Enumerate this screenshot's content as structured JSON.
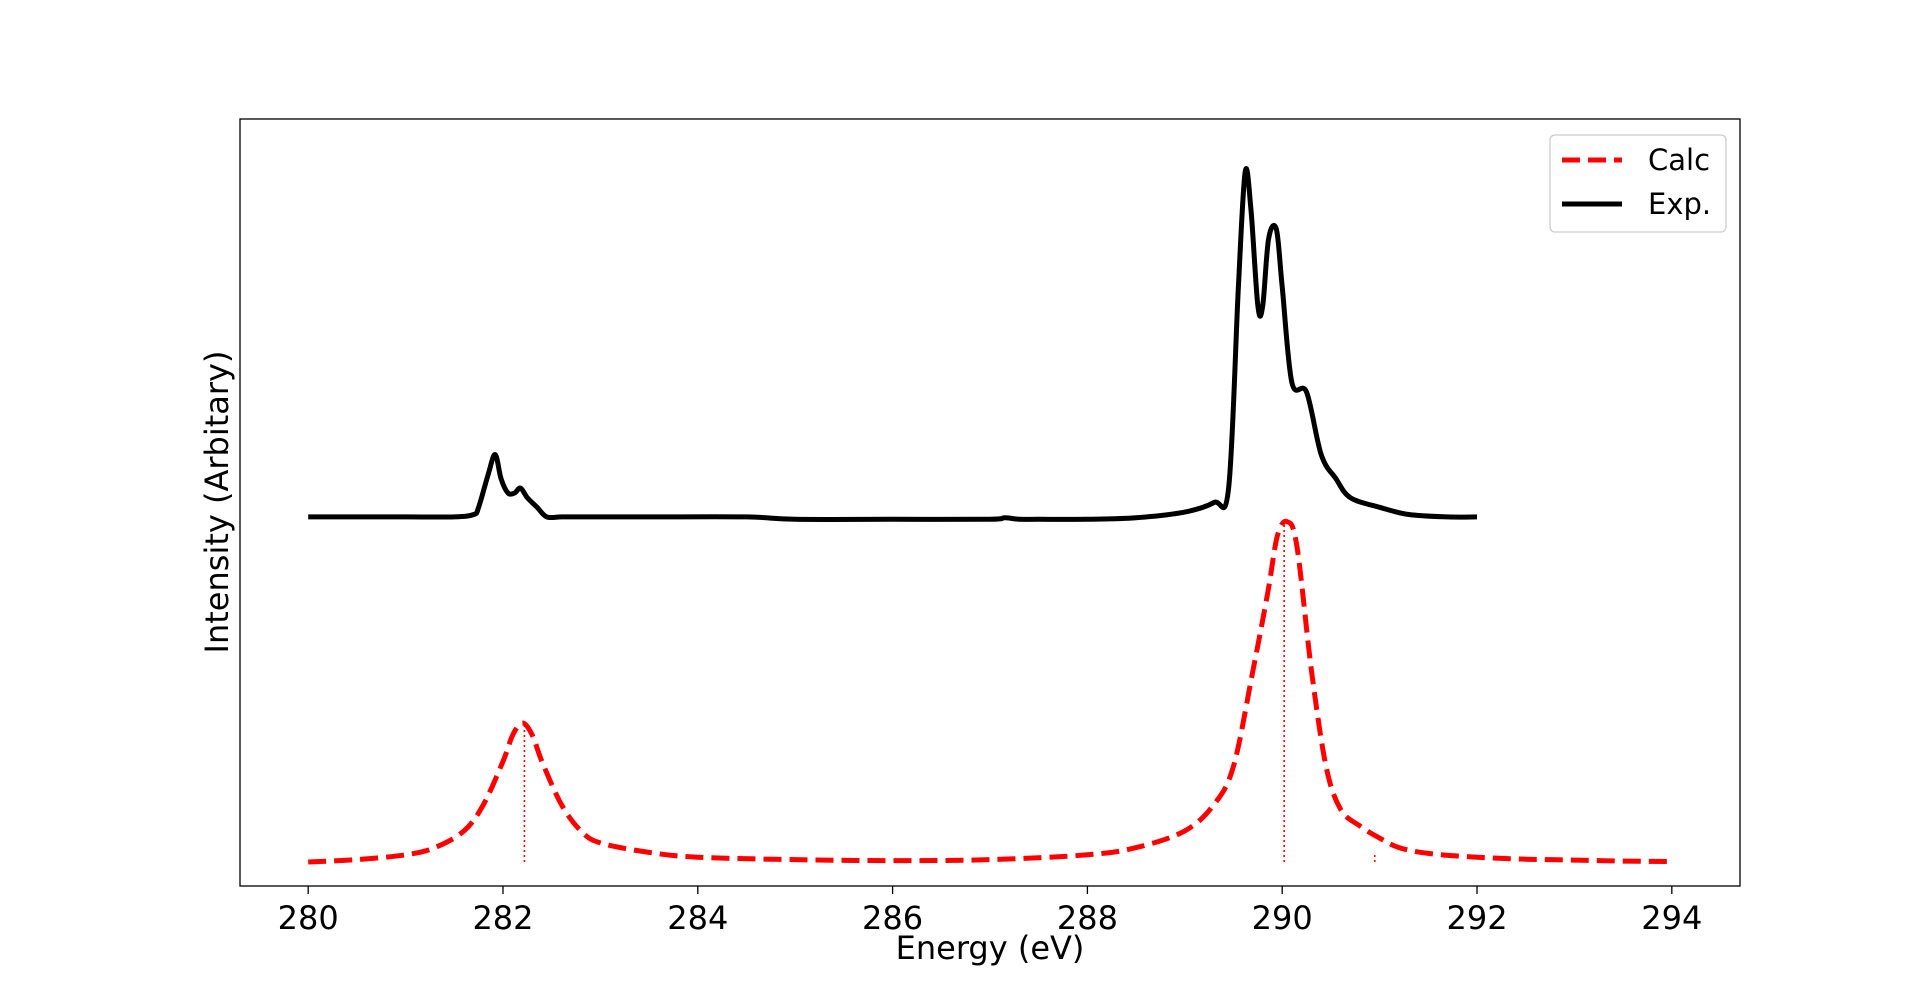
{
  "chart_data": {
    "type": "line",
    "title": "",
    "xlabel": "Energy (eV)",
    "ylabel": "Intensity (Arbitary)",
    "xlim": [
      279.3,
      294.7
    ],
    "ylim": [
      -0.05,
      1.55
    ],
    "x_ticks": [
      280,
      282,
      284,
      286,
      288,
      290,
      292,
      294
    ],
    "y_ticks_visible": false,
    "grid": false,
    "legend_position": "top-right",
    "series": [
      {
        "name": "Calc",
        "color": "#ff0000",
        "style": "dashed",
        "x": [
          280.0,
          280.5,
          281.0,
          281.3,
          281.6,
          281.8,
          282.0,
          282.1,
          282.2,
          282.3,
          282.4,
          282.6,
          282.8,
          283.0,
          283.5,
          284.0,
          285.0,
          286.0,
          287.0,
          288.0,
          288.5,
          289.0,
          289.3,
          289.5,
          289.7,
          289.85,
          289.95,
          290.05,
          290.15,
          290.3,
          290.45,
          290.6,
          290.8,
          291.0,
          291.2,
          291.5,
          292.0,
          292.5,
          293.0,
          293.5,
          294.0
        ],
        "y": [
          0.0,
          0.005,
          0.015,
          0.03,
          0.065,
          0.12,
          0.21,
          0.265,
          0.29,
          0.265,
          0.21,
          0.12,
          0.065,
          0.04,
          0.02,
          0.01,
          0.005,
          0.003,
          0.005,
          0.015,
          0.03,
          0.065,
          0.12,
          0.2,
          0.4,
          0.56,
          0.68,
          0.71,
          0.66,
          0.4,
          0.2,
          0.11,
          0.075,
          0.05,
          0.03,
          0.018,
          0.01,
          0.006,
          0.004,
          0.002,
          0.001
        ]
      },
      {
        "name": "Exp.",
        "color": "#000000",
        "style": "solid",
        "x": [
          280.0,
          280.5,
          281.0,
          281.5,
          281.7,
          281.75,
          281.85,
          281.92,
          281.98,
          282.05,
          282.12,
          282.18,
          282.25,
          282.35,
          282.45,
          282.6,
          282.8,
          283.5,
          284.5,
          285.0,
          286.0,
          287.0,
          287.15,
          287.3,
          287.5,
          288.0,
          288.5,
          289.0,
          289.3,
          289.45,
          289.55,
          289.62,
          289.68,
          289.75,
          289.8,
          289.86,
          289.94,
          290.0,
          290.1,
          290.25,
          290.4,
          290.55,
          290.7,
          291.0,
          291.3,
          291.7,
          292.0
        ],
        "y": [
          0.72,
          0.72,
          0.72,
          0.72,
          0.725,
          0.74,
          0.81,
          0.85,
          0.8,
          0.77,
          0.77,
          0.78,
          0.76,
          0.74,
          0.72,
          0.72,
          0.72,
          0.72,
          0.72,
          0.715,
          0.715,
          0.715,
          0.718,
          0.715,
          0.715,
          0.715,
          0.718,
          0.73,
          0.75,
          0.78,
          1.2,
          1.44,
          1.36,
          1.16,
          1.16,
          1.3,
          1.32,
          1.2,
          1.0,
          0.98,
          0.85,
          0.8,
          0.76,
          0.74,
          0.725,
          0.72,
          0.72
        ]
      }
    ],
    "stick_lines": {
      "color": "#ff0000",
      "style": "dotted",
      "x": [
        282.22,
        290.02,
        290.95
      ],
      "y": [
        0.29,
        0.71,
        0.02
      ]
    }
  }
}
